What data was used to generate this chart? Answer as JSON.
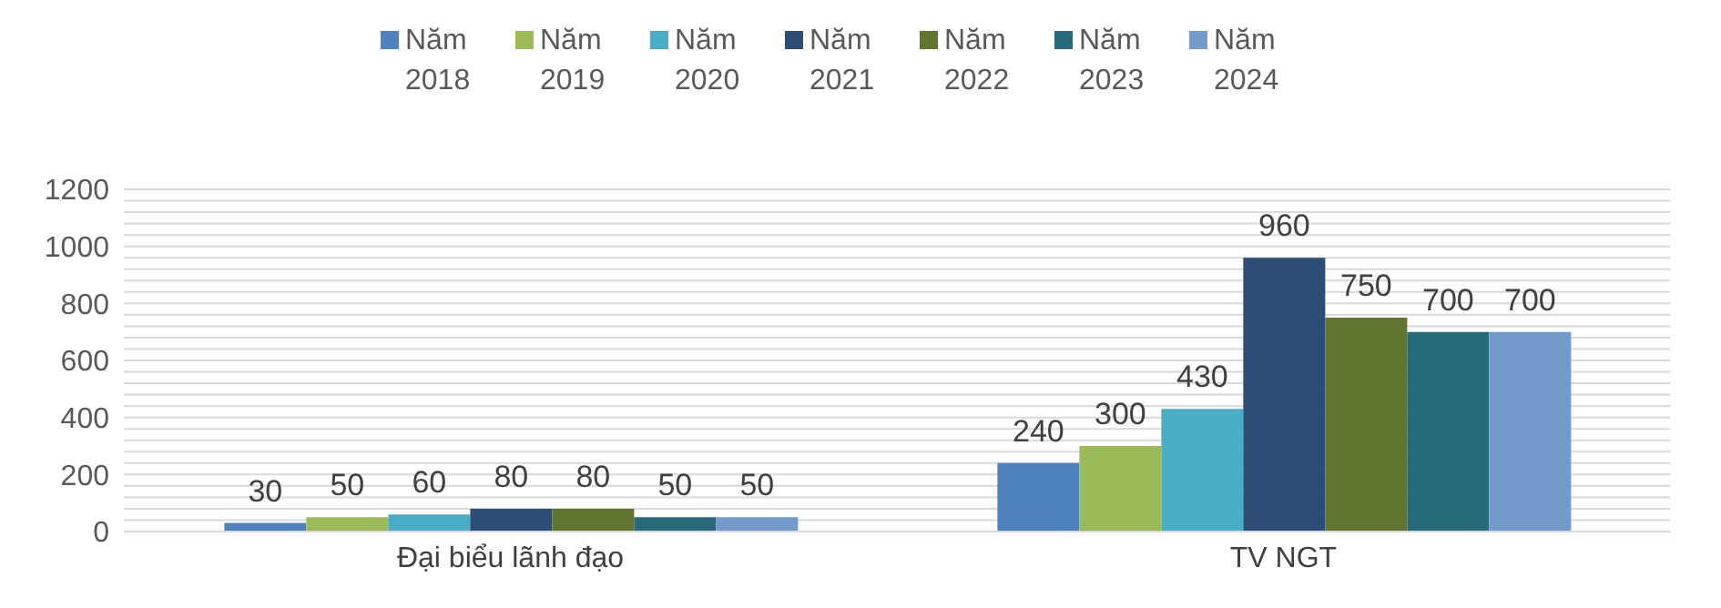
{
  "chart_data": {
    "type": "bar",
    "categories": [
      "Đại biểu lãnh đạo",
      "TV NGT"
    ],
    "series": [
      {
        "name": "Năm 2018",
        "color": "#4f81bd",
        "values": [
          30,
          240
        ]
      },
      {
        "name": "Năm 2019",
        "color": "#9bbb59",
        "values": [
          50,
          300
        ]
      },
      {
        "name": "Năm 2020",
        "color": "#4bacc6",
        "values": [
          60,
          430
        ]
      },
      {
        "name": "Năm 2021",
        "color": "#2c4d75",
        "values": [
          80,
          960
        ]
      },
      {
        "name": "Năm 2022",
        "color": "#5f7530",
        "values": [
          80,
          750
        ]
      },
      {
        "name": "Năm 2023",
        "color": "#276a7c",
        "values": [
          50,
          700
        ]
      },
      {
        "name": "Năm 2024",
        "color": "#729aca",
        "values": [
          50,
          700
        ]
      }
    ],
    "ylim": [
      0,
      1200
    ],
    "yticks": [
      0,
      {
        "value": 40,
        "label": null
      },
      {
        "value": 80,
        "label": null
      },
      {
        "value": 120,
        "label": null
      },
      {
        "value": 160,
        "label": null
      },
      200,
      {
        "value": 240,
        "label": null
      },
      {
        "value": 280,
        "label": null
      },
      {
        "value": 320,
        "label": null
      },
      {
        "value": 360,
        "label": null
      },
      400,
      {
        "value": 440,
        "label": null
      },
      {
        "value": 480,
        "label": null
      },
      {
        "value": 520,
        "label": null
      },
      {
        "value": 560,
        "label": null
      },
      600,
      {
        "value": 640,
        "label": null
      },
      {
        "value": 680,
        "label": null
      },
      {
        "value": 720,
        "label": null
      },
      {
        "value": 760,
        "label": null
      },
      800,
      {
        "value": 840,
        "label": null
      },
      {
        "value": 880,
        "label": null
      },
      {
        "value": 920,
        "label": null
      },
      {
        "value": 960,
        "label": null
      },
      1000,
      {
        "value": 1040,
        "label": null
      },
      {
        "value": 1080,
        "label": null
      },
      {
        "value": 1120,
        "label": null
      },
      {
        "value": 1160,
        "label": null
      },
      1200
    ],
    "grid": "y",
    "legend": "top",
    "data_labels": true
  }
}
